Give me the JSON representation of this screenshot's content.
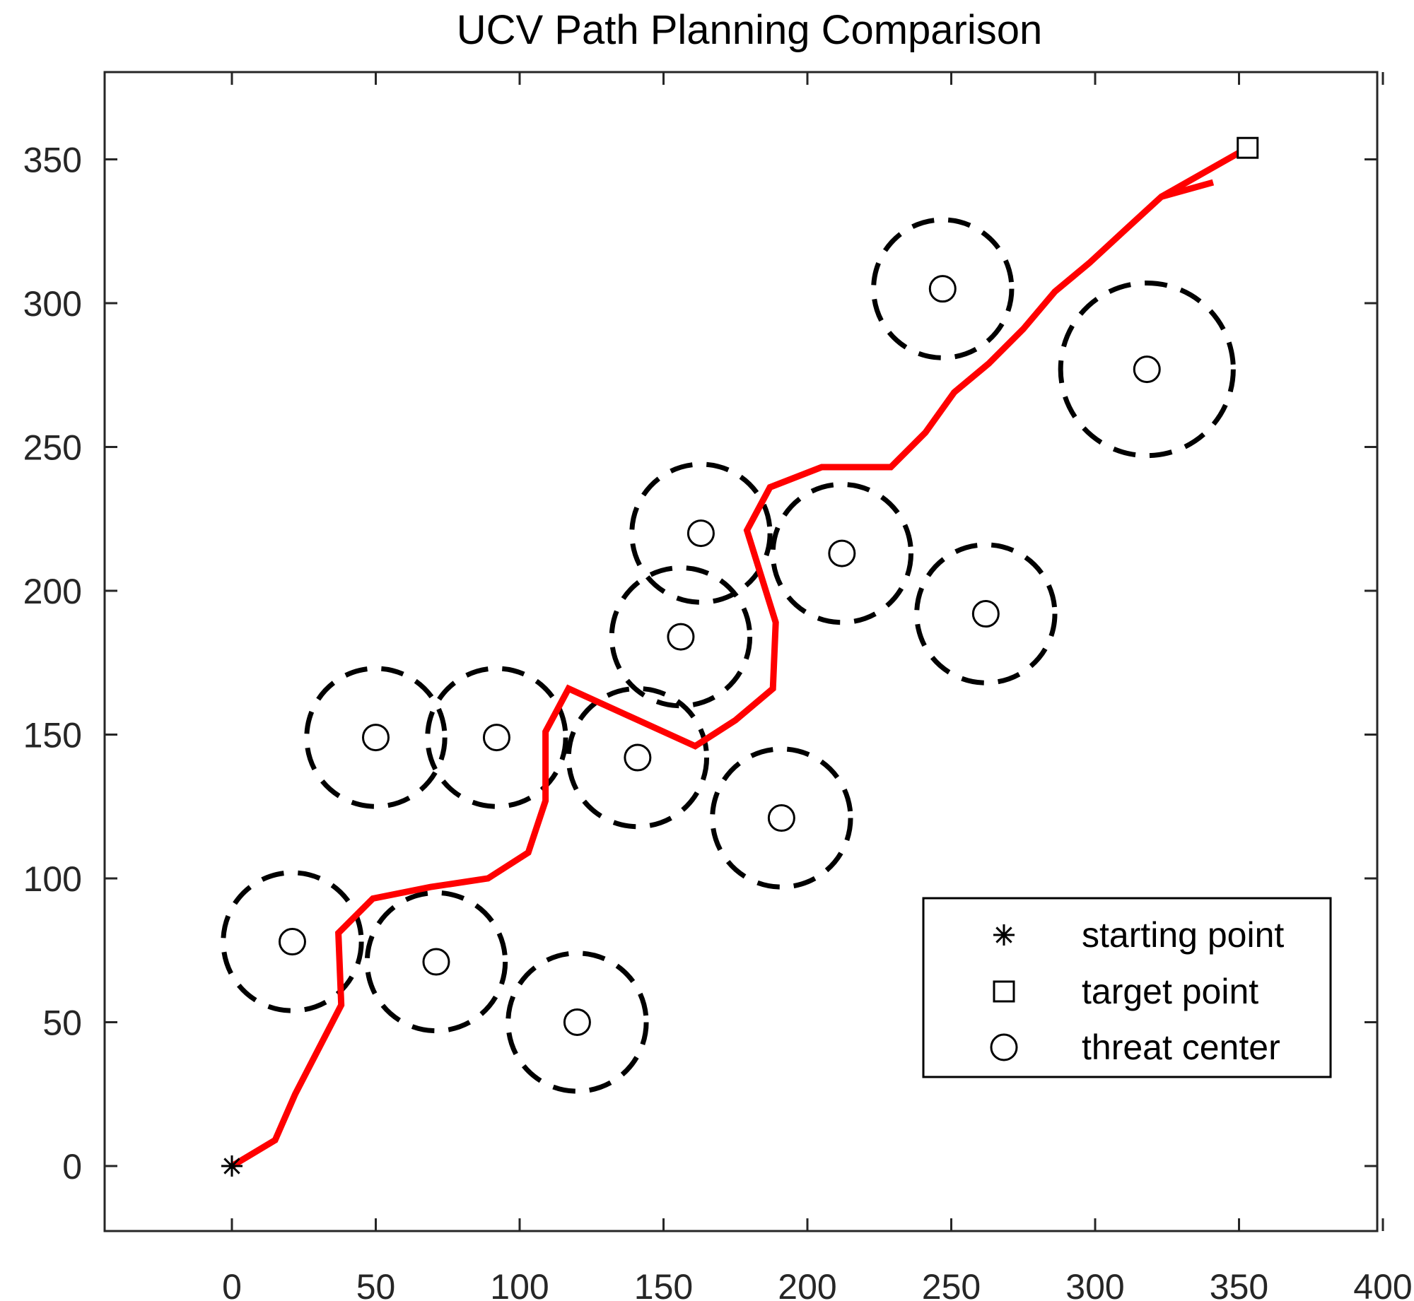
{
  "chart_data": {
    "type": "scatter",
    "title": "UCV Path Planning Comparison",
    "xlabel": "",
    "ylabel": "",
    "xlim": [
      -45,
      405
    ],
    "ylim": [
      -25,
      380
    ],
    "xticks": [
      0,
      50,
      100,
      150,
      200,
      250,
      300,
      350,
      400
    ],
    "yticks": [
      0,
      50,
      100,
      150,
      200,
      250,
      300,
      350
    ],
    "grid": false,
    "legend_position": "bottom-right",
    "legend": [
      {
        "label": "starting point",
        "marker": "asterisk"
      },
      {
        "label": "target point",
        "marker": "square"
      },
      {
        "label": "threat center",
        "marker": "circle"
      }
    ],
    "start_point": {
      "x": 0,
      "y": 0
    },
    "target_point": {
      "x": 353,
      "y": 354
    },
    "threats": [
      {
        "x": 21,
        "y": 78,
        "r": 24
      },
      {
        "x": 50,
        "y": 149,
        "r": 24
      },
      {
        "x": 71,
        "y": 71,
        "r": 24
      },
      {
        "x": 92,
        "y": 149,
        "r": 24
      },
      {
        "x": 120,
        "y": 50,
        "r": 24
      },
      {
        "x": 141,
        "y": 142,
        "r": 24
      },
      {
        "x": 156,
        "y": 184,
        "r": 24
      },
      {
        "x": 163,
        "y": 220,
        "r": 24
      },
      {
        "x": 191,
        "y": 121,
        "r": 24
      },
      {
        "x": 212,
        "y": 213,
        "r": 24
      },
      {
        "x": 247,
        "y": 305,
        "r": 24
      },
      {
        "x": 262,
        "y": 192,
        "r": 24
      },
      {
        "x": 318,
        "y": 277,
        "r": 30
      }
    ],
    "series": [
      {
        "color": "#ff0000",
        "x": [
          0,
          15,
          22,
          38,
          37,
          49,
          69,
          89,
          103,
          109,
          109,
          117,
          161,
          175,
          188,
          189,
          179,
          187,
          205,
          229,
          241,
          251,
          263,
          275,
          286,
          298,
          311,
          323,
          341
        ],
        "y": [
          0,
          9,
          25,
          56,
          81,
          93,
          97,
          100,
          109,
          127,
          151,
          166,
          146,
          155,
          166,
          189,
          221,
          236,
          243,
          243,
          255,
          269,
          279,
          291,
          304,
          314,
          326,
          337,
          342
        ]
      },
      {
        "color": "#ff0000",
        "x": [
          323,
          353
        ],
        "y": [
          337,
          354
        ]
      }
    ],
    "colors": {
      "path": "#ff0000",
      "threat": "#000000",
      "axis": "#262626"
    }
  }
}
